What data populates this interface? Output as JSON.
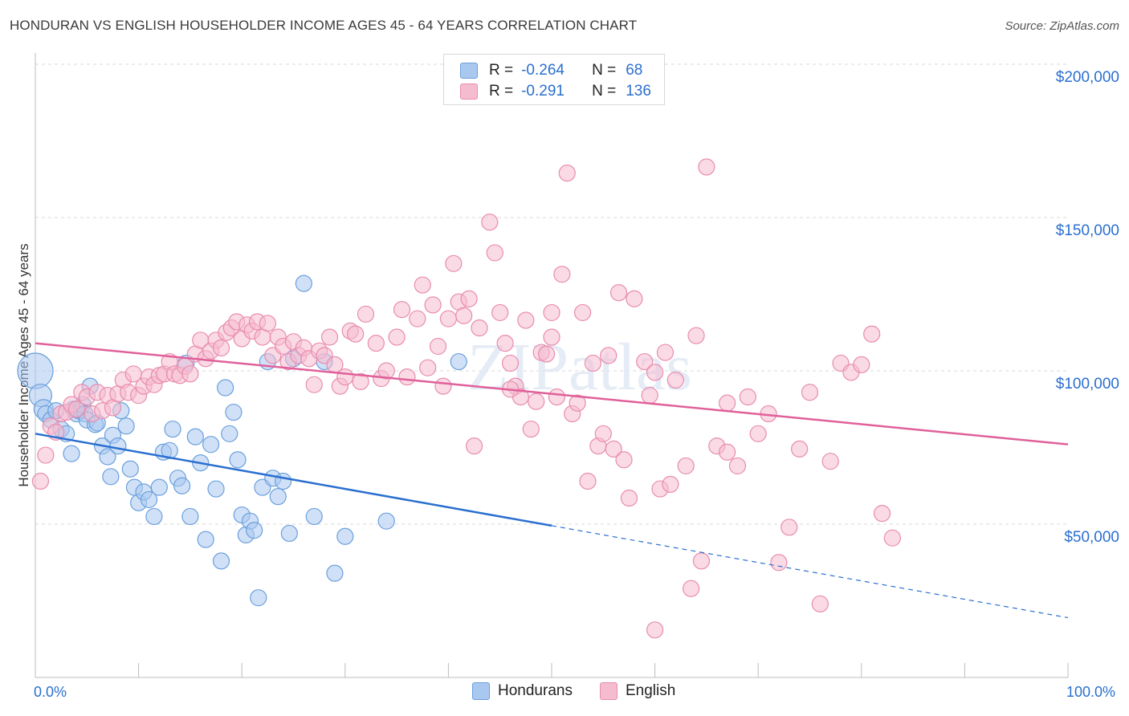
{
  "title": "HONDURAN VS ENGLISH HOUSEHOLDER INCOME AGES 45 - 64 YEARS CORRELATION CHART",
  "source": "Source: ZipAtlas.com",
  "watermark": "ZIPatlas",
  "colors": {
    "hondurans_fill": "#a9c8f0",
    "hondurans_stroke": "#6a9fdc",
    "hondurans_line": "#2a6fcf",
    "english_fill": "#f5bcd0",
    "english_stroke": "#e88cad",
    "english_line": "#e0609a",
    "axis_text": "#2a6fcf",
    "grid": "#d9d9d9"
  },
  "legend_top": {
    "rows": [
      {
        "r_label": "R =",
        "r_value": "-0.264",
        "n_label": "N =",
        "n_value": "68"
      },
      {
        "r_label": "R =",
        "r_value": "-0.291",
        "n_label": "N =",
        "n_value": "136"
      }
    ]
  },
  "legend_bottom": [
    "Hondurans",
    "English"
  ],
  "chart_data": {
    "type": "scatter",
    "title": "HONDURAN VS ENGLISH HOUSEHOLDER INCOME AGES 45 - 64 YEARS CORRELATION CHART",
    "xlabel": "",
    "ylabel": "Householder Income Ages 45 - 64 years",
    "x_tick_labels": [
      "0.0%",
      "100.0%"
    ],
    "y_tick_labels": [
      "$50,000",
      "$100,000",
      "$150,000",
      "$200,000"
    ],
    "y_tick_values": [
      50000,
      100000,
      150000,
      200000
    ],
    "xlim": [
      0,
      100
    ],
    "ylim": [
      5000,
      205000
    ],
    "grid": true,
    "legend_position": "top-center",
    "series": [
      {
        "name": "Hondurans",
        "r": -0.264,
        "n": 68,
        "trend": {
          "x0": 0,
          "y0": 79500,
          "x1": 100,
          "y1": 19500,
          "solid_until_x": 50
        },
        "points": [
          [
            0,
            100000,
            22
          ],
          [
            0.5,
            92000,
            14
          ],
          [
            0.8,
            87500,
            12
          ],
          [
            1,
            86000,
            10
          ],
          [
            1.5,
            84000,
            10
          ],
          [
            2,
            87000,
            10
          ],
          [
            2.5,
            81000,
            10
          ],
          [
            3,
            79500,
            10
          ],
          [
            3.5,
            73000,
            10
          ],
          [
            3.7,
            87500,
            10
          ],
          [
            4,
            86000,
            10
          ],
          [
            4.2,
            87000,
            10
          ],
          [
            4.6,
            89000,
            10
          ],
          [
            4.8,
            86000,
            10
          ],
          [
            5,
            84000,
            10
          ],
          [
            5.3,
            95000,
            10
          ],
          [
            5.8,
            82500,
            10
          ],
          [
            6,
            83000,
            10
          ],
          [
            6.5,
            75500,
            10
          ],
          [
            7,
            72000,
            10
          ],
          [
            7.3,
            65500,
            10
          ],
          [
            7.5,
            79000,
            10
          ],
          [
            8,
            75500,
            10
          ],
          [
            8.3,
            87000,
            10
          ],
          [
            8.8,
            82000,
            10
          ],
          [
            9.2,
            68000,
            10
          ],
          [
            9.6,
            62000,
            10
          ],
          [
            10,
            57000,
            10
          ],
          [
            10.5,
            60500,
            10
          ],
          [
            11,
            58000,
            10
          ],
          [
            11.5,
            52500,
            10
          ],
          [
            12,
            62000,
            10
          ],
          [
            12.4,
            73500,
            10
          ],
          [
            13,
            74000,
            10
          ],
          [
            13.3,
            81000,
            10
          ],
          [
            13.8,
            65000,
            10
          ],
          [
            14.2,
            62500,
            10
          ],
          [
            14.6,
            102500,
            10
          ],
          [
            15,
            52500,
            10
          ],
          [
            15.5,
            78500,
            10
          ],
          [
            16,
            70000,
            10
          ],
          [
            16.5,
            45000,
            10
          ],
          [
            17,
            76000,
            10
          ],
          [
            17.5,
            61500,
            10
          ],
          [
            18,
            38000,
            10
          ],
          [
            18.4,
            94500,
            10
          ],
          [
            18.8,
            79500,
            10
          ],
          [
            19.2,
            86500,
            10
          ],
          [
            19.6,
            71000,
            10
          ],
          [
            20,
            53000,
            10
          ],
          [
            20.4,
            46500,
            10
          ],
          [
            20.8,
            51000,
            10
          ],
          [
            21.2,
            48000,
            10
          ],
          [
            21.6,
            26000,
            10
          ],
          [
            22,
            62000,
            10
          ],
          [
            22.5,
            103000,
            10
          ],
          [
            23,
            65000,
            10
          ],
          [
            23.5,
            59000,
            10
          ],
          [
            24,
            64000,
            10
          ],
          [
            24.6,
            47000,
            10
          ],
          [
            25,
            104000,
            10
          ],
          [
            26,
            128500,
            10
          ],
          [
            27,
            52500,
            10
          ],
          [
            28,
            103000,
            10
          ],
          [
            29,
            34000,
            10
          ],
          [
            30,
            46000,
            10
          ],
          [
            34,
            51000,
            10
          ],
          [
            41,
            103000,
            10
          ]
        ]
      },
      {
        "name": "English",
        "r": -0.291,
        "n": 136,
        "trend": {
          "x0": 0,
          "y0": 109000,
          "x1": 100,
          "y1": 76000
        },
        "points": [
          [
            0.5,
            64000,
            10
          ],
          [
            1,
            72500,
            10
          ],
          [
            1.5,
            82000,
            10
          ],
          [
            2,
            80000,
            10
          ],
          [
            2.5,
            86000,
            10
          ],
          [
            3,
            86500,
            10
          ],
          [
            3.5,
            89000,
            10
          ],
          [
            4,
            87500,
            10
          ],
          [
            4.5,
            93000,
            10
          ],
          [
            5,
            91500,
            10
          ],
          [
            5.5,
            86000,
            10
          ],
          [
            6,
            93000,
            10
          ],
          [
            6.5,
            87000,
            10
          ],
          [
            7,
            92000,
            10
          ],
          [
            7.5,
            88000,
            10
          ],
          [
            8,
            92500,
            10
          ],
          [
            8.5,
            97000,
            10
          ],
          [
            9,
            93000,
            10
          ],
          [
            9.5,
            99000,
            10
          ],
          [
            10,
            92000,
            10
          ],
          [
            10.5,
            95000,
            10
          ],
          [
            11,
            98000,
            10
          ],
          [
            11.5,
            95500,
            10
          ],
          [
            12,
            98500,
            10
          ],
          [
            12.5,
            99000,
            10
          ],
          [
            13,
            103000,
            10
          ],
          [
            13.5,
            99000,
            10
          ],
          [
            14,
            98500,
            10
          ],
          [
            14.5,
            101500,
            10
          ],
          [
            15,
            99000,
            10
          ],
          [
            15.5,
            105500,
            10
          ],
          [
            16,
            110000,
            10
          ],
          [
            16.5,
            104000,
            10
          ],
          [
            17,
            106500,
            10
          ],
          [
            17.5,
            110000,
            10
          ],
          [
            18,
            107500,
            10
          ],
          [
            18.5,
            112500,
            10
          ],
          [
            19,
            114000,
            10
          ],
          [
            19.5,
            116000,
            10
          ],
          [
            20,
            110500,
            10
          ],
          [
            20.5,
            115000,
            10
          ],
          [
            21,
            113000,
            10
          ],
          [
            21.5,
            116000,
            10
          ],
          [
            22,
            111000,
            10
          ],
          [
            22.5,
            115500,
            10
          ],
          [
            23,
            105000,
            10
          ],
          [
            23.5,
            111000,
            10
          ],
          [
            24,
            108000,
            10
          ],
          [
            24.5,
            103000,
            10
          ],
          [
            25,
            109500,
            10
          ],
          [
            25.5,
            105000,
            10
          ],
          [
            26,
            107500,
            10
          ],
          [
            26.5,
            104000,
            10
          ],
          [
            27,
            95500,
            10
          ],
          [
            27.5,
            106500,
            10
          ],
          [
            28,
            105000,
            10
          ],
          [
            28.5,
            111000,
            10
          ],
          [
            29,
            102000,
            10
          ],
          [
            29.5,
            95000,
            10
          ],
          [
            30,
            98000,
            10
          ],
          [
            30.5,
            113000,
            10
          ],
          [
            31,
            112000,
            10
          ],
          [
            31.5,
            96500,
            10
          ],
          [
            32,
            118500,
            10
          ],
          [
            33,
            109000,
            10
          ],
          [
            33.5,
            97500,
            10
          ],
          [
            34,
            100000,
            10
          ],
          [
            35,
            111000,
            10
          ],
          [
            35.5,
            120000,
            10
          ],
          [
            36,
            98000,
            10
          ],
          [
            37,
            117000,
            10
          ],
          [
            37.5,
            128000,
            10
          ],
          [
            38,
            101000,
            10
          ],
          [
            38.5,
            121500,
            10
          ],
          [
            39,
            108000,
            10
          ],
          [
            39.5,
            95000,
            10
          ],
          [
            40,
            117000,
            10
          ],
          [
            40.5,
            135000,
            10
          ],
          [
            41,
            122500,
            10
          ],
          [
            41.5,
            118000,
            10
          ],
          [
            42,
            123500,
            10
          ],
          [
            42.5,
            75500,
            10
          ],
          [
            43,
            114000,
            10
          ],
          [
            44,
            148500,
            10
          ],
          [
            44.5,
            138500,
            10
          ],
          [
            45,
            119000,
            10
          ],
          [
            45.5,
            109000,
            10
          ],
          [
            46,
            102500,
            10
          ],
          [
            46.5,
            95000,
            10
          ],
          [
            47,
            91500,
            10
          ],
          [
            47.5,
            116500,
            10
          ],
          [
            48,
            81000,
            10
          ],
          [
            48.5,
            90000,
            10
          ],
          [
            49,
            106000,
            10
          ],
          [
            49.5,
            105500,
            10
          ],
          [
            50,
            111000,
            10
          ],
          [
            50.5,
            91500,
            10
          ],
          [
            51,
            131500,
            10
          ],
          [
            51.5,
            164500,
            10
          ],
          [
            52,
            86000,
            10
          ],
          [
            52.5,
            89500,
            10
          ],
          [
            53,
            119000,
            10
          ],
          [
            53.5,
            64000,
            10
          ],
          [
            54,
            102500,
            10
          ],
          [
            54.5,
            75500,
            10
          ],
          [
            55,
            79500,
            10
          ],
          [
            55.5,
            105000,
            10
          ],
          [
            56,
            74500,
            10
          ],
          [
            56.5,
            125500,
            10
          ],
          [
            57,
            71000,
            10
          ],
          [
            57.5,
            58500,
            10
          ],
          [
            58,
            123500,
            10
          ],
          [
            59,
            103000,
            10
          ],
          [
            59.5,
            92000,
            10
          ],
          [
            60,
            99500,
            10
          ],
          [
            60.5,
            61500,
            10
          ],
          [
            61,
            106000,
            10
          ],
          [
            61.5,
            63000,
            10
          ],
          [
            62,
            97000,
            10
          ],
          [
            63,
            69000,
            10
          ],
          [
            63.5,
            29000,
            10
          ],
          [
            64,
            111500,
            10
          ],
          [
            64.5,
            38000,
            10
          ],
          [
            65,
            166500,
            10
          ],
          [
            66,
            75500,
            10
          ],
          [
            67,
            89500,
            10
          ],
          [
            68,
            69000,
            10
          ],
          [
            69,
            91500,
            10
          ],
          [
            70,
            79500,
            10
          ],
          [
            71,
            86000,
            10
          ],
          [
            72,
            37500,
            10
          ],
          [
            73,
            49000,
            10
          ],
          [
            74,
            74500,
            10
          ],
          [
            75,
            93000,
            10
          ],
          [
            76,
            24000,
            10
          ],
          [
            77,
            70500,
            10
          ],
          [
            78,
            102500,
            10
          ],
          [
            79,
            99500,
            10
          ],
          [
            80,
            102000,
            10
          ],
          [
            81,
            112000,
            10
          ],
          [
            82,
            53500,
            10
          ],
          [
            83,
            45500,
            10
          ],
          [
            60,
            15500,
            10
          ],
          [
            50,
            119000,
            10
          ],
          [
            67,
            73500,
            10
          ],
          [
            46,
            94000,
            10
          ]
        ]
      }
    ]
  }
}
